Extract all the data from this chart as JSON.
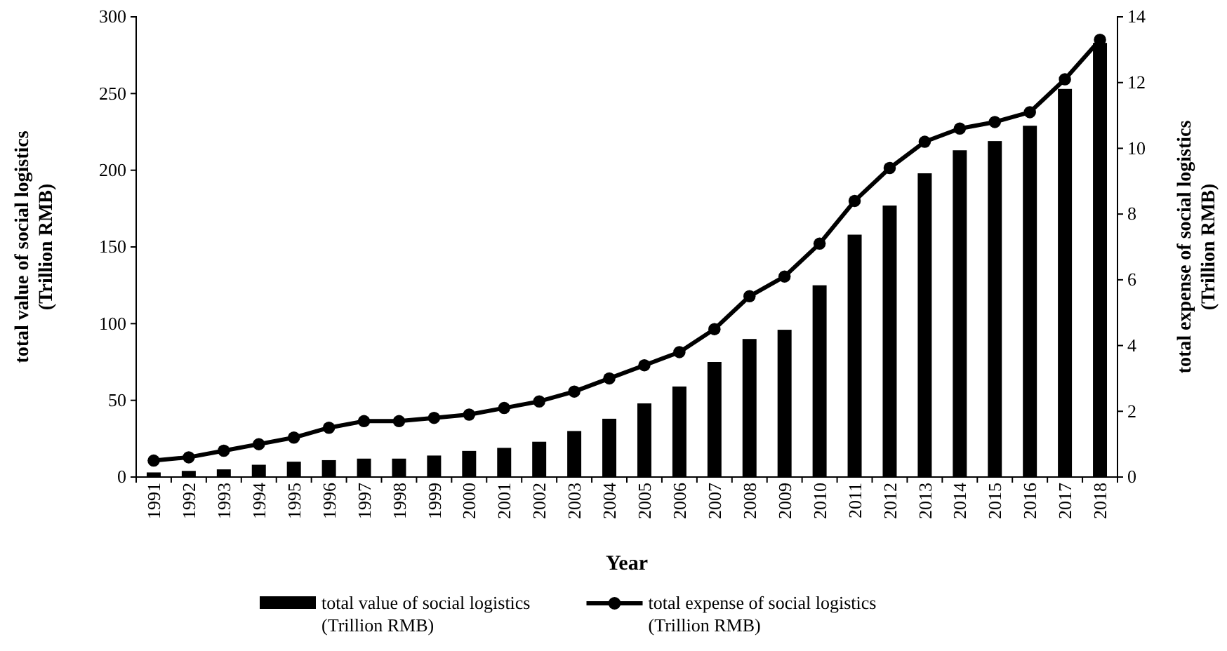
{
  "chart_data": {
    "type": "bar",
    "xlabel": "Year",
    "ylabel": "total value of social logistics\n(Trillion RMB)",
    "y2label": "total expense of social logistics\n(Trillion RMB)",
    "categories": [
      "1991",
      "1992",
      "1993",
      "1994",
      "1995",
      "1996",
      "1997",
      "1998",
      "1999",
      "2000",
      "2001",
      "2002",
      "2003",
      "2004",
      "2005",
      "2006",
      "2007",
      "2008",
      "2009",
      "2010",
      "2011",
      "2012",
      "2013",
      "2014",
      "2015",
      "2016",
      "2017",
      "2018"
    ],
    "series": [
      {
        "name": "total value of social logistics\n(Trillion RMB)",
        "color": "#000000",
        "values": [
          3,
          4,
          5,
          8,
          10,
          11,
          12,
          12,
          14,
          17,
          19,
          23,
          30,
          38,
          48,
          59,
          75,
          90,
          96,
          125,
          158,
          177,
          198,
          213,
          219,
          229,
          253,
          283
        ]
      },
      {
        "name": "total expense of social logistics\n(Trillion RMB)",
        "type": "line",
        "axis": "y2",
        "color": "#000000",
        "values": [
          0.5,
          0.6,
          0.8,
          1.0,
          1.2,
          1.5,
          1.7,
          1.7,
          1.8,
          1.9,
          2.1,
          2.3,
          2.6,
          3.0,
          3.4,
          3.8,
          4.5,
          5.5,
          6.1,
          7.1,
          8.4,
          9.4,
          10.2,
          10.6,
          10.8,
          11.1,
          12.1,
          13.3
        ]
      }
    ],
    "ylim": [
      0,
      300
    ],
    "yticks": [
      0,
      50,
      100,
      150,
      200,
      250,
      300
    ],
    "y2lim": [
      0,
      14
    ],
    "y2ticks": [
      0,
      2,
      4,
      6,
      8,
      10,
      12,
      14
    ],
    "marker": "circle",
    "grid": false,
    "legend": "bottom"
  }
}
